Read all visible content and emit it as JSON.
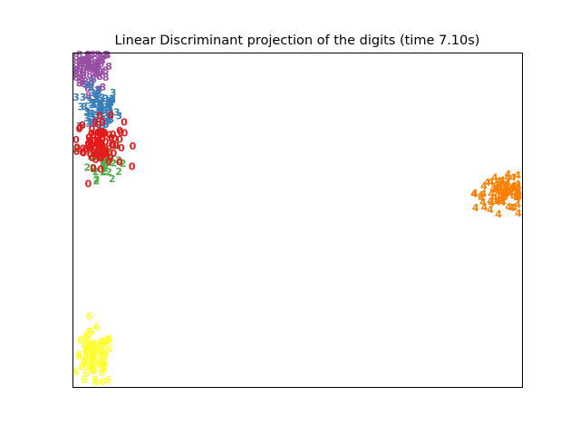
{
  "chart_data": {
    "type": "scatter",
    "title": "Linear Discriminant projection of the digits (time 7.10s)",
    "xlabel": "",
    "ylabel": "",
    "xlim": [
      0,
      100
    ],
    "ylim": [
      0,
      100
    ],
    "ticks_visible": false,
    "grid": false,
    "legend": "none",
    "marker": "digit-text",
    "clusters": [
      {
        "label": "8",
        "color": "#984ea3",
        "center": [
          4,
          95
        ],
        "spread": [
          2.2,
          3.0
        ],
        "count": 70
      },
      {
        "label": "3",
        "color": "#377eb8",
        "center": [
          5.5,
          83
        ],
        "spread": [
          2.2,
          3.4
        ],
        "count": 80
      },
      {
        "label": "2",
        "color": "#4daf4a",
        "center": [
          7,
          68
        ],
        "spread": [
          1.8,
          2.8
        ],
        "count": 45
      },
      {
        "label": "0",
        "color": "#e41a1c",
        "center": [
          6,
          73
        ],
        "spread": [
          2.6,
          3.6
        ],
        "count": 90
      },
      {
        "label": "4",
        "color": "#ff7f00",
        "center": [
          96,
          58
        ],
        "spread": [
          3.2,
          2.4
        ],
        "count": 80
      },
      {
        "label": "6",
        "color": "#ffff33",
        "center": [
          4.5,
          8
        ],
        "spread": [
          2.2,
          4.0
        ],
        "count": 75
      }
    ]
  }
}
